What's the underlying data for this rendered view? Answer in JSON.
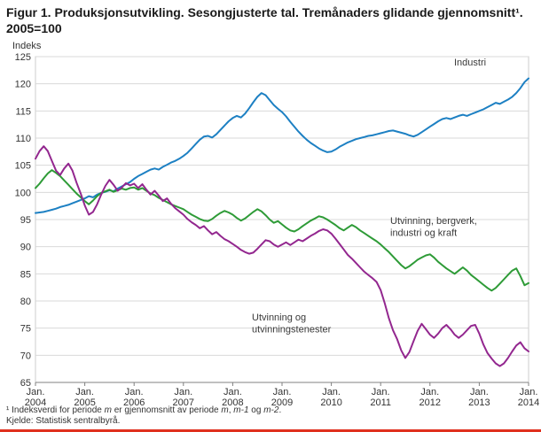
{
  "title": "Figur 1. Produksjonsutvikling. Sesongjusterte tal. Tremånaders glidande gjennomsnitt¹. 2005=100",
  "accent_color": "#e0301e",
  "footnotes": {
    "line1_parts": [
      {
        "text": "¹ Indeksverdi for periode ",
        "italic": false
      },
      {
        "text": "m",
        "italic": true
      },
      {
        "text": " er gjennomsnitt av periode ",
        "italic": false
      },
      {
        "text": "m",
        "italic": true
      },
      {
        "text": ", ",
        "italic": false
      },
      {
        "text": "m-1",
        "italic": true
      },
      {
        "text": " og ",
        "italic": false
      },
      {
        "text": "m-2",
        "italic": true
      },
      {
        "text": ".",
        "italic": false
      }
    ],
    "line2": "Kjelde: Statistisk sentralbyrå."
  },
  "chart_data": {
    "type": "line",
    "title": "Figur 1. Produksjonsutvikling. Sesongjusterte tal. Tremånaders glidande gjennomsnitt¹. 2005=100",
    "ylabel": "Indeks",
    "ylim": [
      65,
      125
    ],
    "y_tick_step": 5,
    "grid": true,
    "legend_position": "inline-labels",
    "x_unit": "monthly, Jan. 2004 - Jan. 2014",
    "x_tick_month_label": "Jan.",
    "x_tick_years": [
      "2004",
      "2005",
      "2006",
      "2007",
      "2008",
      "2009",
      "2010",
      "2011",
      "2012",
      "2013",
      "2014"
    ],
    "series": [
      {
        "name": "Industri",
        "label_lines": [
          "Industri"
        ],
        "color": "#1d80c3",
        "values": [
          96.2,
          96.3,
          96.4,
          96.6,
          96.8,
          97.0,
          97.3,
          97.5,
          97.7,
          98.0,
          98.3,
          98.6,
          98.9,
          99.3,
          99.1,
          99.6,
          99.9,
          100.1,
          100.4,
          100.2,
          100.7,
          101.1,
          101.5,
          101.9,
          102.5,
          103.0,
          103.4,
          103.8,
          104.2,
          104.4,
          104.2,
          104.7,
          105.1,
          105.5,
          105.8,
          106.2,
          106.7,
          107.3,
          108.1,
          108.9,
          109.7,
          110.3,
          110.4,
          110.1,
          110.7,
          111.5,
          112.3,
          113.1,
          113.7,
          114.1,
          113.8,
          114.5,
          115.5,
          116.6,
          117.6,
          118.3,
          117.9,
          117.0,
          116.1,
          115.4,
          114.8,
          114.0,
          113.0,
          112.1,
          111.2,
          110.4,
          109.7,
          109.1,
          108.6,
          108.1,
          107.7,
          107.4,
          107.5,
          107.9,
          108.4,
          108.8,
          109.2,
          109.5,
          109.8,
          110.0,
          110.2,
          110.4,
          110.5,
          110.7,
          110.9,
          111.1,
          111.3,
          111.4,
          111.2,
          111.0,
          110.8,
          110.5,
          110.3,
          110.6,
          111.1,
          111.6,
          112.1,
          112.6,
          113.1,
          113.5,
          113.7,
          113.5,
          113.8,
          114.1,
          114.3,
          114.1,
          114.4,
          114.7,
          115.0,
          115.3,
          115.7,
          116.1,
          116.5,
          116.3,
          116.7,
          117.1,
          117.6,
          118.3,
          119.2,
          120.3,
          121.0
        ]
      },
      {
        "name": "Utvinning, bergverk, industri og kraft",
        "label_lines": [
          "Utvinning, bergverk,",
          "industri og kraft"
        ],
        "color": "#2e9b37",
        "values": [
          100.8,
          101.6,
          102.6,
          103.5,
          104.1,
          103.6,
          103.0,
          102.2,
          101.4,
          100.6,
          99.8,
          99.1,
          98.4,
          97.8,
          98.5,
          99.3,
          99.9,
          100.2,
          100.5,
          100.1,
          100.4,
          100.7,
          100.5,
          100.8,
          100.9,
          100.5,
          100.8,
          100.3,
          99.8,
          99.5,
          99.0,
          98.6,
          98.2,
          97.8,
          97.5,
          97.2,
          96.9,
          96.4,
          95.9,
          95.5,
          95.1,
          94.8,
          94.7,
          95.1,
          95.7,
          96.2,
          96.6,
          96.3,
          95.9,
          95.3,
          94.8,
          95.2,
          95.8,
          96.4,
          96.9,
          96.5,
          95.8,
          95.0,
          94.4,
          94.7,
          94.1,
          93.5,
          93.0,
          92.8,
          93.2,
          93.8,
          94.3,
          94.8,
          95.2,
          95.6,
          95.4,
          95.0,
          94.5,
          94.0,
          93.4,
          93.0,
          93.5,
          94.0,
          93.6,
          93.0,
          92.5,
          92.0,
          91.5,
          91.0,
          90.4,
          89.7,
          89.0,
          88.2,
          87.4,
          86.6,
          86.0,
          86.4,
          87.0,
          87.6,
          88.0,
          88.4,
          88.6,
          88.0,
          87.2,
          86.6,
          86.0,
          85.5,
          85.0,
          85.6,
          86.2,
          85.6,
          84.8,
          84.2,
          83.6,
          83.0,
          82.4,
          81.9,
          82.4,
          83.2,
          84.0,
          84.8,
          85.6,
          86.0,
          84.6,
          82.9,
          83.3
        ]
      },
      {
        "name": "Utvinning og utvinningstenester",
        "label_lines": [
          "Utvinning og",
          "utvinningstenester"
        ],
        "color": "#93278f",
        "values": [
          106.2,
          107.6,
          108.5,
          107.6,
          105.8,
          104.0,
          103.2,
          104.4,
          105.3,
          104.0,
          101.8,
          99.8,
          97.6,
          95.9,
          96.4,
          97.8,
          99.6,
          101.2,
          102.3,
          101.4,
          100.3,
          100.9,
          101.7,
          101.3,
          101.6,
          100.8,
          101.5,
          100.5,
          99.6,
          100.3,
          99.4,
          98.4,
          98.9,
          97.9,
          97.1,
          96.5,
          95.9,
          95.1,
          94.5,
          94.0,
          93.4,
          93.8,
          93.0,
          92.3,
          92.7,
          92.0,
          91.4,
          91.0,
          90.5,
          90.0,
          89.4,
          89.0,
          88.7,
          88.9,
          89.6,
          90.4,
          91.2,
          91.0,
          90.4,
          90.0,
          90.4,
          90.8,
          90.3,
          90.8,
          91.3,
          91.0,
          91.5,
          92.0,
          92.4,
          92.9,
          93.2,
          93.0,
          92.4,
          91.5,
          90.5,
          89.5,
          88.5,
          87.8,
          87.0,
          86.2,
          85.4,
          84.8,
          84.2,
          83.5,
          82.0,
          79.6,
          76.8,
          74.6,
          73.0,
          70.9,
          69.5,
          70.6,
          72.6,
          74.5,
          75.8,
          74.8,
          73.8,
          73.2,
          74.0,
          75.0,
          75.6,
          74.8,
          73.8,
          73.2,
          73.8,
          74.6,
          75.4,
          75.6,
          74.0,
          72.0,
          70.4,
          69.4,
          68.5,
          68.0,
          68.5,
          69.5,
          70.7,
          71.8,
          72.4,
          71.3,
          70.7
        ]
      }
    ]
  }
}
